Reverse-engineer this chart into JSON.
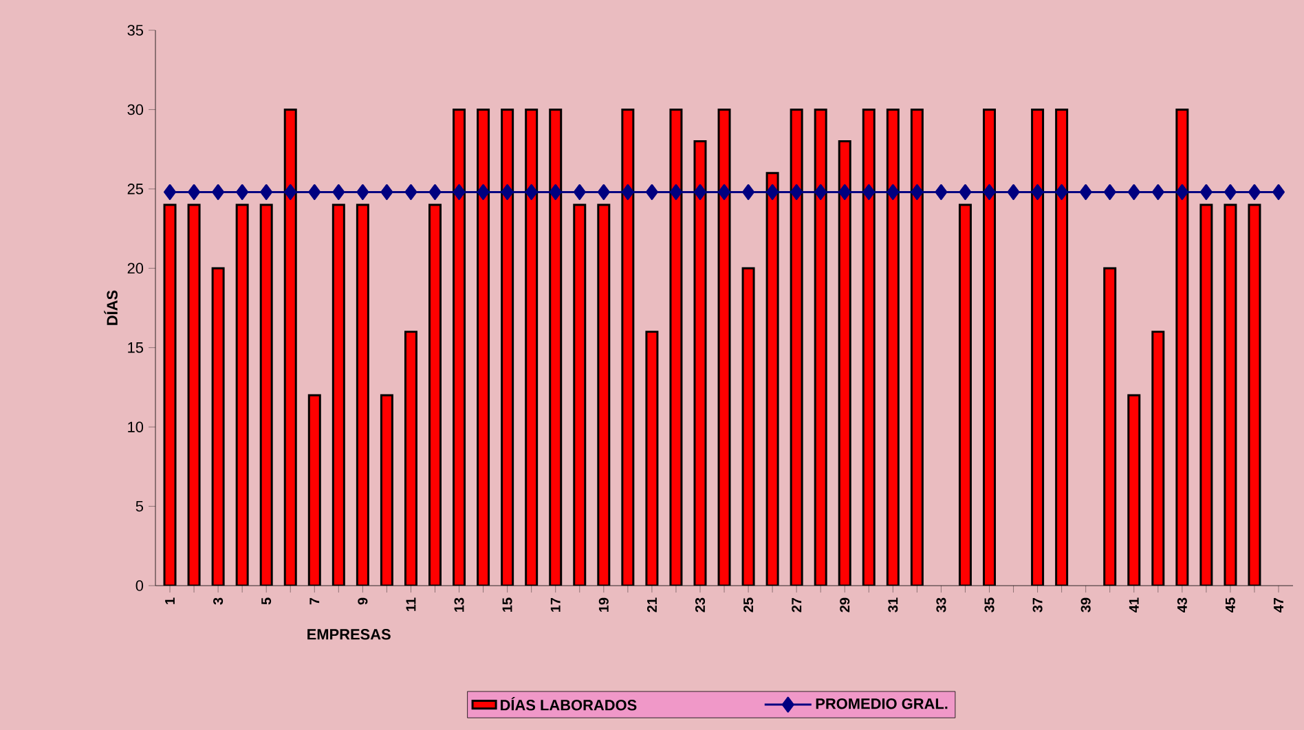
{
  "chart_data": {
    "type": "bar",
    "xlabel": "EMPRESAS",
    "ylabel": "DÍAS",
    "categories": [
      "1",
      null,
      "3",
      null,
      "5",
      null,
      "7",
      null,
      "9",
      null,
      "11",
      null,
      "13",
      null,
      "15",
      null,
      "17",
      null,
      "19",
      null,
      "21",
      null,
      "23",
      null,
      "25",
      null,
      "27",
      null,
      "29",
      null,
      "31",
      null,
      "33",
      null,
      "35",
      null,
      "37",
      null,
      "39",
      null,
      "41",
      null,
      "43",
      null,
      "45",
      null,
      "47"
    ],
    "series": [
      {
        "name": "DÍAS LABORADOS",
        "color": "#ff0000",
        "values": [
          24,
          24,
          20,
          24,
          24,
          30,
          12,
          24,
          24,
          12,
          16,
          24,
          30,
          30,
          30,
          30,
          30,
          24,
          24,
          30,
          16,
          30,
          28,
          30,
          20,
          26,
          30,
          30,
          28,
          30,
          30,
          30,
          null,
          24,
          30,
          null,
          30,
          30,
          null,
          20,
          12,
          16,
          30,
          24,
          24,
          24,
          null
        ]
      },
      {
        "name": "PROMEDIO GRAL.",
        "type": "line",
        "color": "#000080",
        "marker": "diamond",
        "line_style": "solid",
        "values": [
          24.8,
          24.8,
          24.8,
          24.8,
          24.8,
          24.8,
          24.8,
          24.8,
          24.8,
          24.8,
          24.8,
          24.8,
          24.8,
          24.8,
          24.8,
          24.8,
          24.8,
          24.8,
          24.8,
          24.8,
          24.8,
          24.8,
          24.8,
          24.8,
          24.8,
          24.8,
          24.8,
          24.8,
          24.8,
          24.8,
          24.8,
          24.8,
          24.8,
          24.8,
          24.8,
          24.8,
          24.8,
          24.8,
          24.8,
          24.8,
          24.8,
          24.8,
          24.8,
          24.8,
          24.8,
          24.8,
          24.8
        ]
      }
    ],
    "ylim": [
      0,
      35
    ],
    "yticks": [
      0,
      5,
      10,
      15,
      20,
      25,
      30,
      35
    ],
    "grid": false,
    "legend": "bottom"
  }
}
